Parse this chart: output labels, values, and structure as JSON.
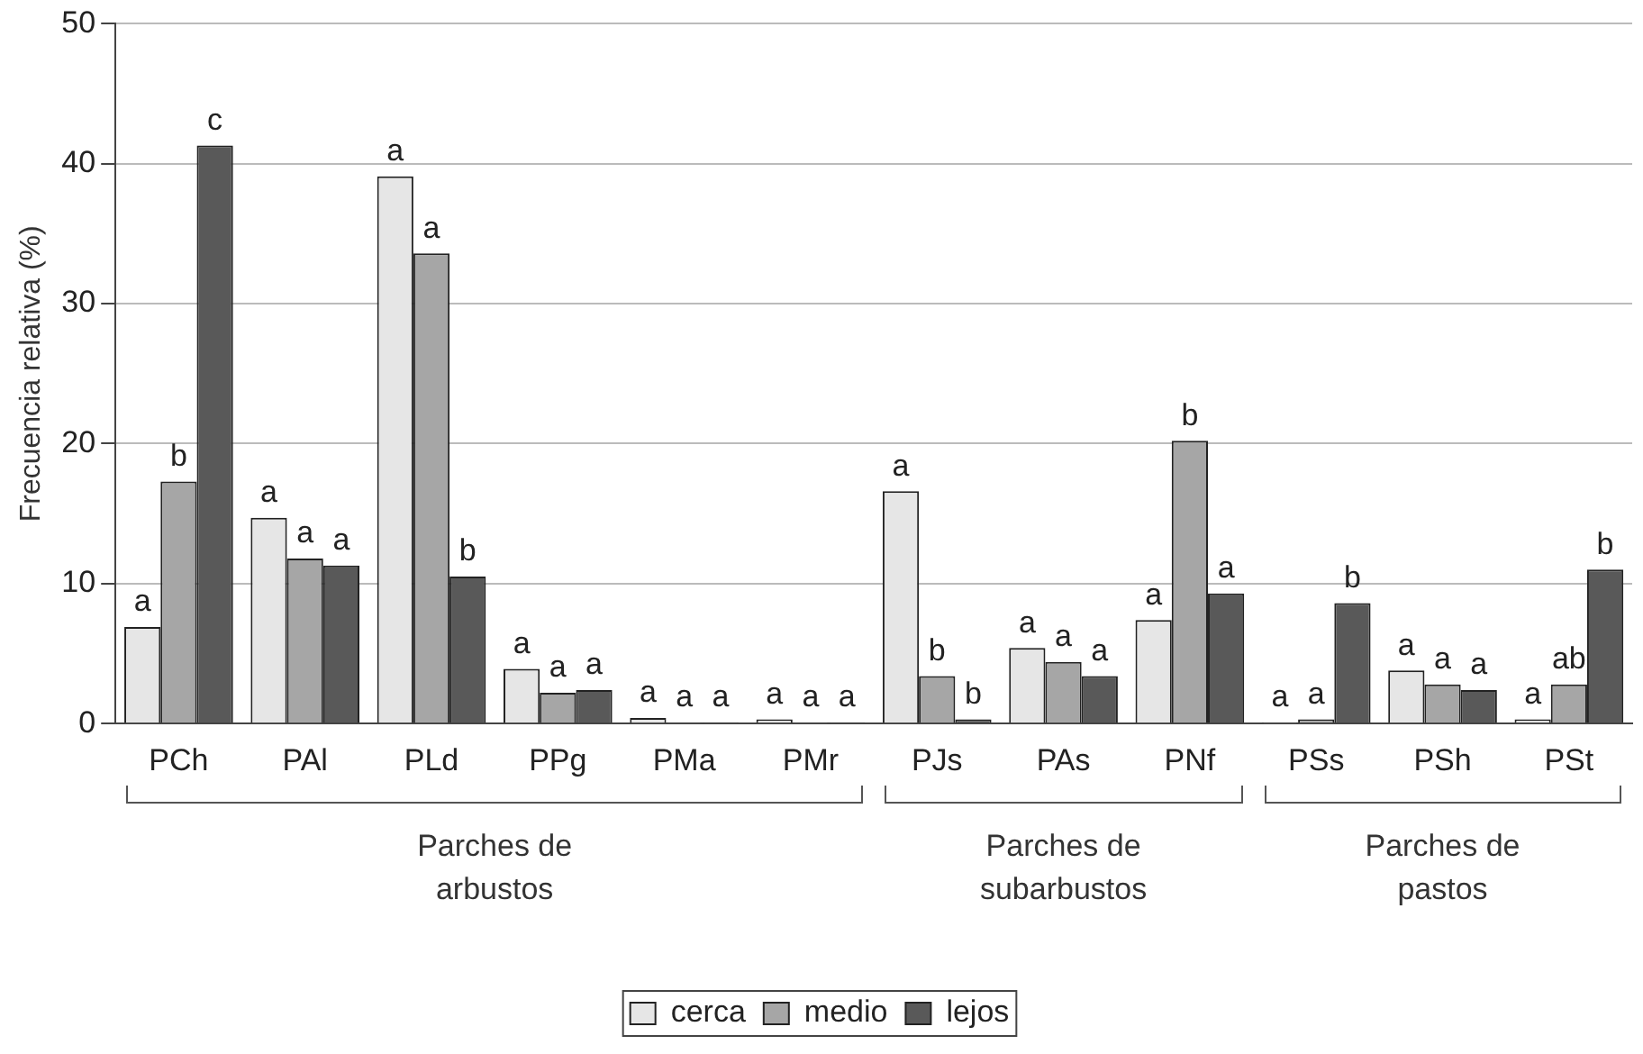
{
  "chart_data": {
    "type": "bar",
    "ylabel": "Frecuencia relativa (%)",
    "categories": [
      "PCh",
      "PAl",
      "PLd",
      "PPg",
      "PMa",
      "PMr",
      "PJs",
      "PAs",
      "PNf",
      "PSs",
      "PSh",
      "PSt"
    ],
    "series": [
      {
        "name": "cerca",
        "color": "#e6e6e6",
        "values": [
          6.9,
          14.7,
          39.1,
          3.9,
          0.4,
          0.3,
          16.6,
          5.4,
          7.4,
          0.1,
          3.8,
          0.3
        ],
        "value_labels": [
          "a",
          "a",
          "a",
          "a",
          "a",
          "a",
          "a",
          "a",
          "a",
          "a",
          "a",
          "a"
        ]
      },
      {
        "name": "medio",
        "color": "#a6a6a6",
        "values": [
          17.3,
          11.8,
          33.6,
          2.2,
          0.1,
          0.1,
          3.4,
          4.4,
          20.2,
          0.3,
          2.8,
          2.8
        ],
        "value_labels": [
          "b",
          "a",
          "a",
          "a",
          "a",
          "a",
          "b",
          "a",
          "b",
          "a",
          "a",
          "ab"
        ]
      },
      {
        "name": "lejos",
        "color": "#595959",
        "values": [
          41.3,
          11.3,
          10.5,
          2.4,
          0.1,
          0.1,
          0.3,
          3.4,
          9.3,
          8.6,
          2.4,
          11.0
        ],
        "value_labels": [
          "c",
          "a",
          "b",
          "a",
          "a",
          "a",
          "b",
          "a",
          "a",
          "b",
          "a",
          "b"
        ]
      }
    ],
    "annotations": [
      "Parches de arbustos",
      "Parches de subarbustos",
      "Parches de pastos"
    ],
    "ylim": [
      0,
      50
    ],
    "yticks": [
      0,
      10,
      20,
      30,
      40,
      50
    ],
    "grid": "y",
    "legend": "bottom"
  }
}
